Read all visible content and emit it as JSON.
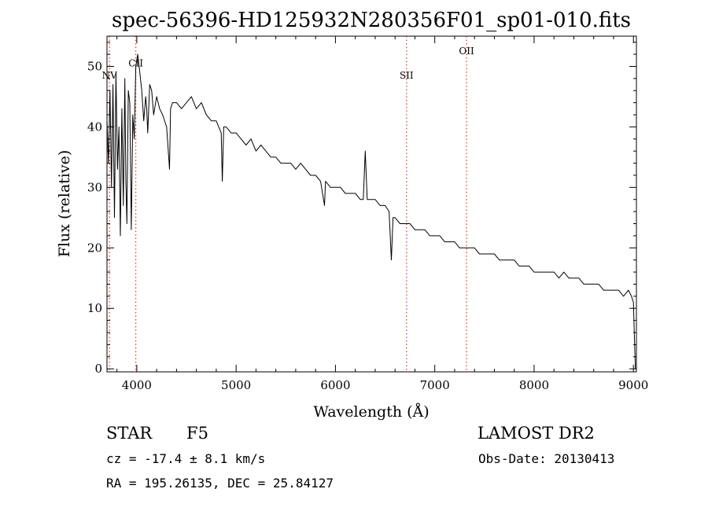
{
  "chart_data": {
    "type": "line",
    "title": "spec-56396-HD125932N280356F01_sp01-010.fits",
    "xlabel": "Wavelength (Å)",
    "ylabel": "Flux (relative)",
    "xlim": [
      3700,
      9030
    ],
    "ylim": [
      -0.5,
      55
    ],
    "x_ticks": [
      4000,
      5000,
      6000,
      7000,
      8000,
      9000
    ],
    "y_ticks": [
      0,
      10,
      20,
      30,
      40,
      50
    ],
    "grid": false,
    "colors": {
      "spectrum": "#000000",
      "line_markers": "#e8302a"
    },
    "series": [
      {
        "x": [
          3700,
          3715,
          3730,
          3745,
          3760,
          3775,
          3790,
          3805,
          3820,
          3835,
          3850,
          3865,
          3880,
          3890,
          3900,
          3915,
          3930,
          3945,
          3960,
          3975,
          3990,
          4010,
          4030,
          4050,
          4070,
          4090,
          4100,
          4110,
          4130,
          4150,
          4170,
          4200,
          4230,
          4260,
          4300,
          4330,
          4340,
          4360,
          4400,
          4450,
          4500,
          4550,
          4600,
          4650,
          4700,
          4750,
          4800,
          4850,
          4861,
          4875,
          4900,
          4950,
          5000,
          5050,
          5100,
          5150,
          5200,
          5250,
          5300,
          5350,
          5400,
          5450,
          5500,
          5550,
          5600,
          5650,
          5700,
          5750,
          5800,
          5850,
          5890,
          5900,
          5950,
          6000,
          6050,
          6100,
          6150,
          6200,
          6250,
          6280,
          6300,
          6320,
          6350,
          6400,
          6450,
          6500,
          6540,
          6563,
          6580,
          6600,
          6650,
          6700,
          6750,
          6800,
          6850,
          6900,
          6950,
          7000,
          7050,
          7100,
          7150,
          7200,
          7250,
          7300,
          7350,
          7400,
          7450,
          7500,
          7550,
          7600,
          7650,
          7700,
          7750,
          7800,
          7850,
          7900,
          7950,
          8000,
          8050,
          8100,
          8150,
          8200,
          8250,
          8300,
          8350,
          8400,
          8450,
          8500,
          8550,
          8600,
          8650,
          8700,
          8750,
          8800,
          8850,
          8900,
          8950,
          8980,
          9000,
          9010,
          9020
        ],
        "y": [
          41,
          34,
          46,
          30,
          47,
          25,
          49,
          33,
          40,
          22,
          43,
          27,
          48,
          31,
          24,
          46,
          44,
          23,
          42,
          38,
          50,
          52,
          49,
          46,
          41,
          45,
          43,
          39,
          47,
          46,
          42,
          45,
          43,
          42,
          40,
          33,
          43,
          44,
          44,
          43,
          44,
          45,
          43,
          44,
          42,
          41,
          41,
          39,
          31,
          40,
          40,
          39,
          39,
          38,
          37,
          38,
          36,
          37,
          36,
          35,
          35,
          34,
          34,
          34,
          33,
          34,
          33,
          32,
          32,
          31,
          27,
          31,
          30,
          30,
          30,
          29,
          29,
          29,
          28,
          28,
          36,
          28,
          28,
          28,
          27,
          27,
          26,
          18,
          25,
          25,
          24,
          24,
          24,
          23,
          23,
          23,
          22,
          22,
          22,
          21,
          21,
          21,
          20,
          20,
          20,
          20,
          19,
          19,
          19,
          19,
          18,
          18,
          18,
          18,
          17,
          17,
          17,
          16,
          16,
          16,
          16,
          16,
          15,
          16,
          15,
          15,
          15,
          14,
          14,
          14,
          14,
          13,
          13,
          13,
          13,
          12,
          13,
          12,
          11,
          5,
          0
        ]
      }
    ],
    "line_markers": [
      {
        "label": "NV",
        "x": 3725,
        "label_y": 48
      },
      {
        "label": "CII",
        "x": 3990,
        "label_y": 50
      },
      {
        "label": "SII",
        "x": 6716,
        "label_y": 48
      },
      {
        "label": "OII",
        "x": 7320,
        "label_y": 52
      }
    ]
  },
  "info": {
    "object_class": "STAR",
    "subclass": "F5",
    "survey": "LAMOST DR2",
    "cz": "cz = -17.4 ± 8.1 km/s",
    "obs_date": "Obs-Date: 20130413",
    "coords": "RA = 195.26135, DEC =  25.84127"
  }
}
